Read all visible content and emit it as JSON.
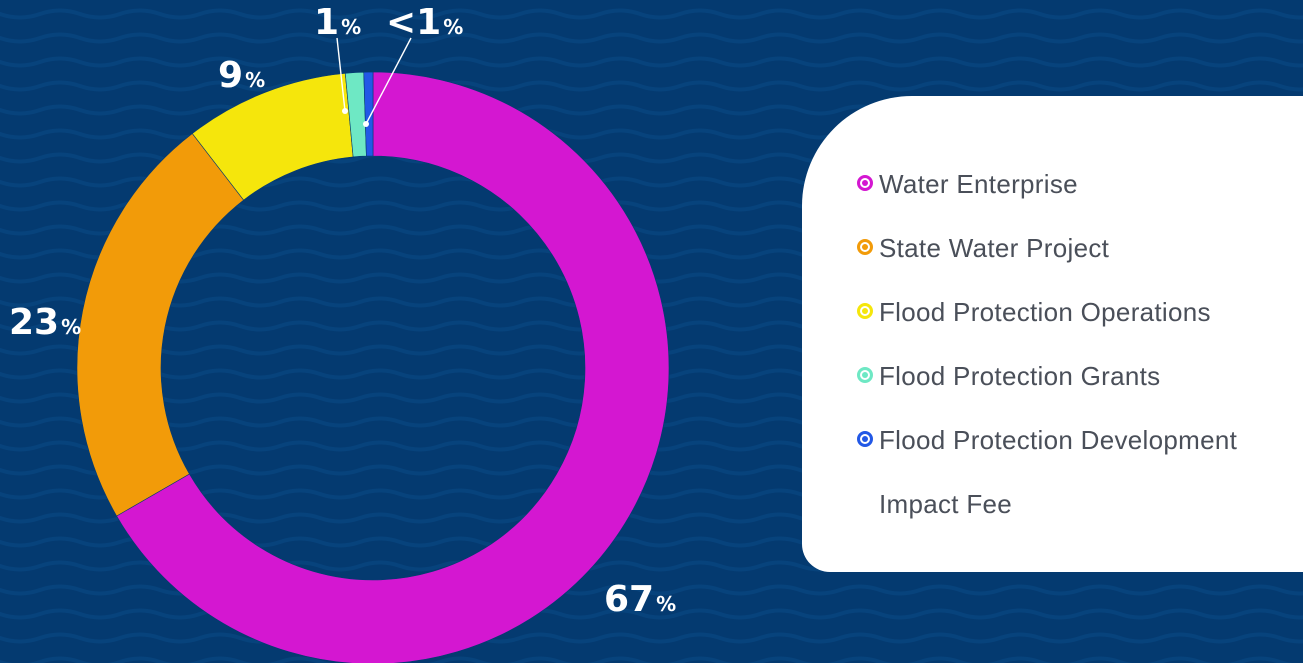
{
  "page": {
    "background": "#043a70",
    "wave_color": "#0b4a86"
  },
  "chart_data": {
    "type": "pie",
    "variant": "donut",
    "categories": [
      "Water Enterprise",
      "State Water Project",
      "Flood Protection Operations",
      "Flood Protection Grants",
      "Flood Protection Development Impact Fee"
    ],
    "values": [
      67,
      23,
      9,
      1,
      0.5
    ],
    "value_labels": [
      {
        "number": "67",
        "unit": "%"
      },
      {
        "number": "23",
        "unit": "%"
      },
      {
        "number": "9",
        "unit": "%"
      },
      {
        "number": "1",
        "unit": "%"
      },
      {
        "number": "<1",
        "unit": "%"
      }
    ],
    "colors": [
      "#d417d1",
      "#f29b09",
      "#f5e60c",
      "#6ee8c4",
      "#2258e6"
    ],
    "legend_position": "right"
  },
  "legend": {
    "items": [
      {
        "label": "Water Enterprise",
        "color": "#d417d1"
      },
      {
        "label": "State Water Project",
        "color": "#f29b09"
      },
      {
        "label": "Flood Protection Operations",
        "color": "#f5e60c"
      },
      {
        "label": "Flood Protection Grants",
        "color": "#6ee8c4"
      },
      {
        "label": "Flood Protection Development Impact Fee",
        "color": "#2258e6"
      }
    ]
  }
}
